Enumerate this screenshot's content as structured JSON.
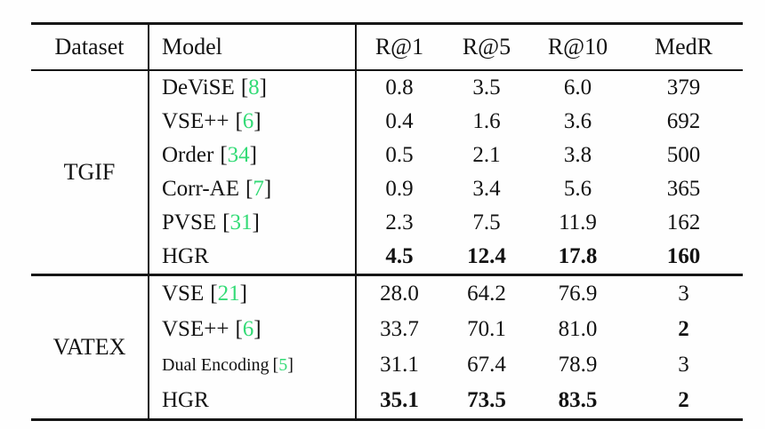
{
  "table": {
    "header": {
      "dataset": "Dataset",
      "model": "Model",
      "metrics": [
        "R@1",
        "R@5",
        "R@10",
        "MedR"
      ]
    },
    "citation_brackets": {
      "open": "[",
      "close": "]"
    },
    "colors": {
      "citation_green": "#33db76",
      "text": "#121212",
      "rule": "#161616",
      "background": "#fefefe"
    },
    "sections": [
      {
        "dataset": "TGIF",
        "rows": [
          {
            "model": "DeViSE",
            "cite": "8",
            "values": [
              "0.8",
              "3.5",
              "6.0",
              "379"
            ],
            "bold": [
              false,
              false,
              false,
              false
            ]
          },
          {
            "model": "VSE++",
            "cite": "6",
            "values": [
              "0.4",
              "1.6",
              "3.6",
              "692"
            ],
            "bold": [
              false,
              false,
              false,
              false
            ]
          },
          {
            "model": "Order",
            "cite": "34",
            "values": [
              "0.5",
              "2.1",
              "3.8",
              "500"
            ],
            "bold": [
              false,
              false,
              false,
              false
            ]
          },
          {
            "model": "Corr-AE",
            "cite": "7",
            "values": [
              "0.9",
              "3.4",
              "5.6",
              "365"
            ],
            "bold": [
              false,
              false,
              false,
              false
            ]
          },
          {
            "model": "PVSE",
            "cite": "31",
            "values": [
              "2.3",
              "7.5",
              "11.9",
              "162"
            ],
            "bold": [
              false,
              false,
              false,
              false
            ]
          },
          {
            "model": "HGR",
            "cite": "",
            "values": [
              "4.5",
              "12.4",
              "17.8",
              "160"
            ],
            "bold": [
              true,
              true,
              true,
              true
            ]
          }
        ]
      },
      {
        "dataset": "VATEX",
        "rows": [
          {
            "model": "VSE",
            "cite": "21",
            "values": [
              "28.0",
              "64.2",
              "76.9",
              "3"
            ],
            "bold": [
              false,
              false,
              false,
              false
            ]
          },
          {
            "model": "VSE++",
            "cite": "6",
            "values": [
              "33.7",
              "70.1",
              "81.0",
              "2"
            ],
            "bold": [
              false,
              false,
              false,
              true
            ]
          },
          {
            "model": "Dual Encoding",
            "cite": "5",
            "values": [
              "31.1",
              "67.4",
              "78.9",
              "3"
            ],
            "bold": [
              false,
              false,
              false,
              false
            ]
          },
          {
            "model": "HGR",
            "cite": "",
            "values": [
              "35.1",
              "73.5",
              "83.5",
              "2"
            ],
            "bold": [
              true,
              true,
              true,
              true
            ]
          }
        ]
      }
    ]
  }
}
